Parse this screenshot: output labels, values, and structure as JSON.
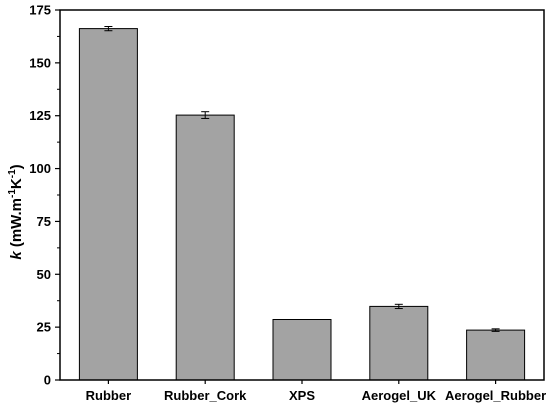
{
  "chart_data": {
    "type": "bar",
    "categories": [
      "Rubber",
      "Rubber_Cork",
      "XPS",
      "Aerogel_UK",
      "Aerogel_Rubber"
    ],
    "values": [
      166.2,
      125.3,
      28.6,
      34.8,
      23.6
    ],
    "error_bars": [
      1.0,
      1.6,
      0,
      1.0,
      0.6
    ],
    "ylabel": {
      "symbol": "k",
      "unit_prefix": " (mW.m",
      "exp1": "-1",
      "unit_mid": "K",
      "exp2": "-1",
      "unit_suffix": ")"
    },
    "ylim": [
      0,
      175
    ],
    "yticks": [
      "0",
      "25",
      "50",
      "75",
      "100",
      "125",
      "150",
      "175"
    ],
    "grid": false,
    "legend": "none",
    "bar_color": "#a3a3a3",
    "bar_edge_color": "#000000"
  }
}
